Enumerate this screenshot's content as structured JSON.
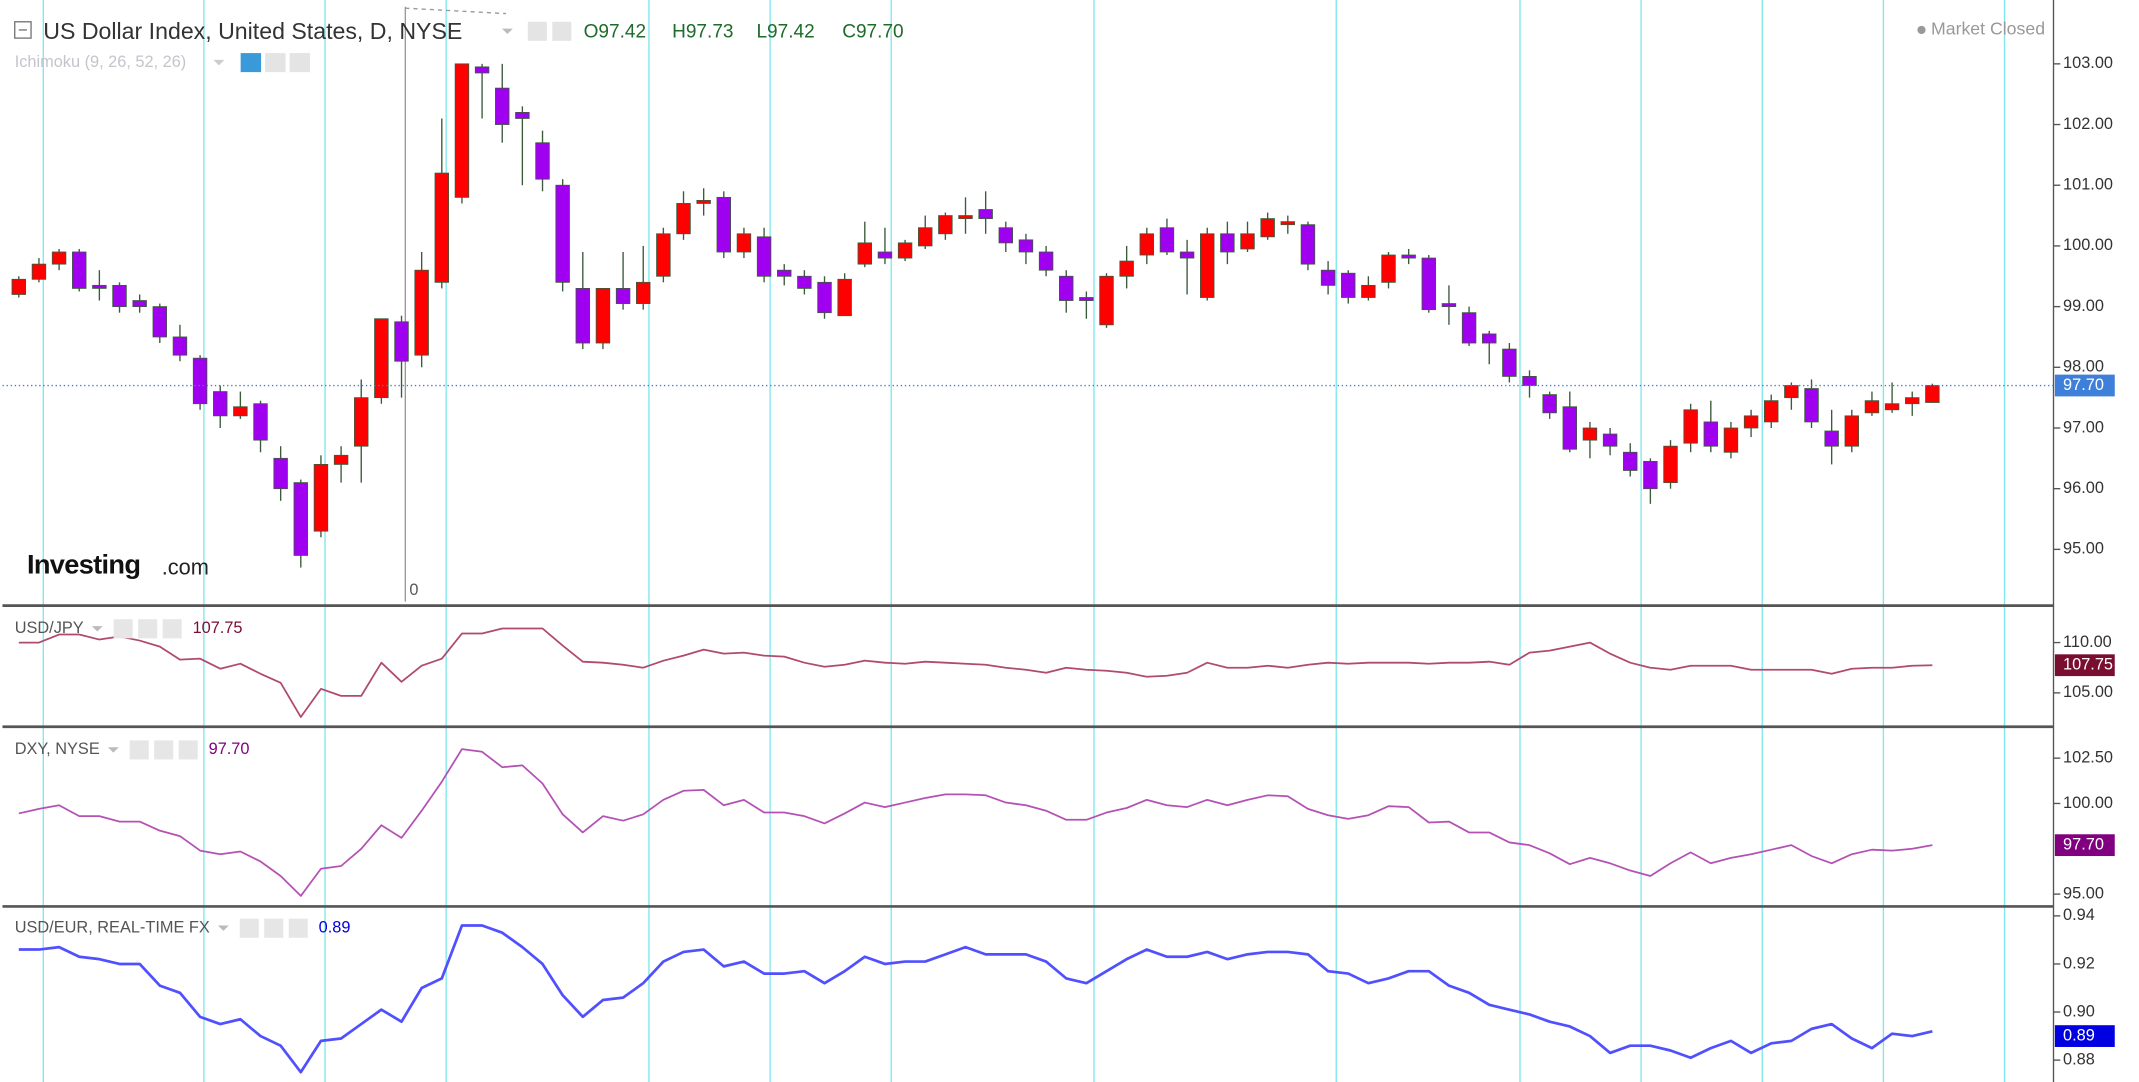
{
  "header": {
    "title": "US Dollar Index, United States, D, NYSE",
    "ohlc": [
      "O97.42",
      "H97.73",
      "L97.42",
      "C97.70"
    ],
    "status": "Market Closed",
    "indicator": "Ichimoku (9, 26, 52, 26)",
    "logo_main": "Investing",
    "logo_suffix": ".com",
    "crosshair_label": "0"
  },
  "chart_data": [
    {
      "type": "candlestick",
      "name": "US Dollar Index",
      "up_color": "#ff0000",
      "down_color": "#a000f0",
      "wick_color": "#3c5a3c",
      "open": [
        99.2,
        99.45,
        99.7,
        99.9,
        99.35,
        99.35,
        99.1,
        99.0,
        98.5,
        98.15,
        97.6,
        97.2,
        97.4,
        96.5,
        96.1,
        95.3,
        96.4,
        96.7,
        97.5,
        98.75,
        98.2,
        99.4,
        100.8,
        102.95,
        102.6,
        102.2,
        101.7,
        101.0,
        99.3,
        98.4,
        99.3,
        99.05,
        99.5,
        100.2,
        100.7,
        100.8,
        99.9,
        100.15,
        99.6,
        99.5,
        99.4,
        98.85,
        99.7,
        99.9,
        99.8,
        100.0,
        100.2,
        100.45,
        100.6,
        100.3,
        100.1,
        99.9,
        99.5,
        99.15,
        98.7,
        99.5,
        99.85,
        100.3,
        99.9,
        99.15,
        100.2,
        99.95,
        100.15,
        100.35,
        100.35,
        99.6,
        99.55,
        99.15,
        99.4,
        99.85,
        99.8,
        99.05,
        98.9,
        98.55,
        98.3,
        97.85,
        97.55,
        97.35,
        96.8,
        96.9,
        96.6,
        96.45,
        96.1,
        96.75,
        97.1,
        96.6,
        97.0,
        97.1,
        97.5,
        97.65,
        96.95,
        96.7,
        97.25,
        97.3,
        97.4,
        97.42
      ],
      "high": [
        99.5,
        99.8,
        99.95,
        99.95,
        99.6,
        99.4,
        99.2,
        99.05,
        98.7,
        98.2,
        97.7,
        97.6,
        97.45,
        96.7,
        96.15,
        96.55,
        96.7,
        97.8,
        98.8,
        98.85,
        99.9,
        102.1,
        103.0,
        103.0,
        103.0,
        102.3,
        101.9,
        101.1,
        99.9,
        99.3,
        99.9,
        100.0,
        100.3,
        100.9,
        100.95,
        100.9,
        100.3,
        100.3,
        99.7,
        99.6,
        99.5,
        99.55,
        100.4,
        100.3,
        100.1,
        100.5,
        100.55,
        100.8,
        100.9,
        100.4,
        100.2,
        100.0,
        99.6,
        99.25,
        99.55,
        100.0,
        100.3,
        100.45,
        100.1,
        100.3,
        100.4,
        100.4,
        100.55,
        100.5,
        100.4,
        99.75,
        99.6,
        99.5,
        99.9,
        99.95,
        99.85,
        99.35,
        99.0,
        98.6,
        98.4,
        97.95,
        97.6,
        97.6,
        97.1,
        97.0,
        96.75,
        96.5,
        96.8,
        97.4,
        97.45,
        97.1,
        97.3,
        97.55,
        97.75,
        97.8,
        97.3,
        97.3,
        97.6,
        97.75,
        97.6,
        97.73
      ],
      "low": [
        99.15,
        99.4,
        99.6,
        99.25,
        99.1,
        98.9,
        98.9,
        98.4,
        98.1,
        97.3,
        97.0,
        97.15,
        96.6,
        95.8,
        94.7,
        95.2,
        96.1,
        96.1,
        97.4,
        97.5,
        98.0,
        99.3,
        100.7,
        102.1,
        101.7,
        101.0,
        100.9,
        99.25,
        98.3,
        98.3,
        98.95,
        98.95,
        99.4,
        100.1,
        100.5,
        99.8,
        99.8,
        99.4,
        99.35,
        99.2,
        98.8,
        98.85,
        99.65,
        99.7,
        99.75,
        99.95,
        100.1,
        100.2,
        100.2,
        99.9,
        99.7,
        99.5,
        98.9,
        98.8,
        98.65,
        99.3,
        99.7,
        99.85,
        99.2,
        99.1,
        99.7,
        99.9,
        100.1,
        100.2,
        99.6,
        99.2,
        99.05,
        99.1,
        99.3,
        99.7,
        98.9,
        98.7,
        98.35,
        98.05,
        97.75,
        97.5,
        97.15,
        96.6,
        96.5,
        96.55,
        96.2,
        95.75,
        96.0,
        96.6,
        96.6,
        96.5,
        96.85,
        97.0,
        97.3,
        97.0,
        96.4,
        96.6,
        97.2,
        97.25,
        97.2,
        97.42
      ],
      "close": [
        99.45,
        99.7,
        99.9,
        99.3,
        99.3,
        99.0,
        99.0,
        98.5,
        98.2,
        97.4,
        97.2,
        97.35,
        96.8,
        96.0,
        94.9,
        96.4,
        96.55,
        97.5,
        98.8,
        98.1,
        99.6,
        101.2,
        103.0,
        102.85,
        102.0,
        102.1,
        101.1,
        99.4,
        98.4,
        99.3,
        99.05,
        99.4,
        100.2,
        100.7,
        100.75,
        99.9,
        100.2,
        99.5,
        99.5,
        99.3,
        98.9,
        99.45,
        100.05,
        99.8,
        100.05,
        100.3,
        100.5,
        100.5,
        100.45,
        100.05,
        99.9,
        99.6,
        99.1,
        99.1,
        99.5,
        99.75,
        100.2,
        99.9,
        99.8,
        100.2,
        99.9,
        100.2,
        100.45,
        100.4,
        99.7,
        99.35,
        99.15,
        99.35,
        99.85,
        99.8,
        98.95,
        99.0,
        98.4,
        98.4,
        97.85,
        97.7,
        97.25,
        96.65,
        97.0,
        96.7,
        96.3,
        96.0,
        96.7,
        97.3,
        96.7,
        97.0,
        97.2,
        97.45,
        97.7,
        97.1,
        96.7,
        97.2,
        97.45,
        97.4,
        97.5,
        97.7
      ],
      "last": {
        "value": 97.7,
        "label": "97.70"
      },
      "last_color": "#3d7fd9",
      "ylim": [
        94.14,
        103.94
      ],
      "yticks": [
        {
          "value": 95,
          "label": "95.00"
        },
        {
          "value": 96,
          "label": "96.00"
        },
        {
          "value": 97,
          "label": "97.00"
        },
        {
          "value": 98,
          "label": "98.00"
        },
        {
          "value": 99,
          "label": "99.00"
        },
        {
          "value": 100,
          "label": "100.00"
        },
        {
          "value": 101,
          "label": "101.00"
        },
        {
          "value": 102,
          "label": "102.00"
        },
        {
          "value": 103,
          "label": "103.00"
        }
      ]
    },
    {
      "type": "line",
      "name": "USD/JPY",
      "color": "#b04a6e",
      "last": 107.75,
      "last_color": "#7a0e30",
      "values": [
        110.0,
        110.0,
        110.8,
        110.8,
        110.3,
        110.6,
        110.2,
        109.6,
        108.3,
        108.4,
        107.4,
        107.9,
        106.9,
        106.0,
        102.6,
        105.4,
        104.7,
        104.7,
        108.0,
        106.1,
        107.7,
        108.4,
        110.9,
        110.9,
        111.4,
        111.4,
        111.4,
        109.7,
        108.1,
        108.0,
        107.8,
        107.5,
        108.2,
        108.7,
        109.3,
        108.9,
        109.0,
        108.7,
        108.6,
        108.0,
        107.6,
        107.8,
        108.2,
        108.0,
        107.9,
        108.1,
        108.0,
        107.9,
        107.8,
        107.5,
        107.3,
        107.0,
        107.5,
        107.3,
        107.2,
        107.0,
        106.6,
        106.7,
        107.0,
        108.0,
        107.5,
        107.5,
        107.7,
        107.5,
        107.8,
        108.0,
        107.9,
        108.0,
        108.0,
        108.0,
        107.9,
        108.0,
        108.0,
        108.1,
        107.8,
        109.0,
        109.2,
        109.6,
        110.0,
        108.9,
        108.0,
        107.5,
        107.3,
        107.7,
        107.7,
        107.7,
        107.3,
        107.3,
        107.3,
        107.3,
        106.9,
        107.4,
        107.5,
        107.5,
        107.7,
        107.75
      ],
      "ylim": [
        101.9,
        113.4
      ],
      "yticks": [
        {
          "value": 105,
          "label": "105.00"
        },
        {
          "value": 110,
          "label": "110.00"
        }
      ]
    },
    {
      "type": "line",
      "name": "DXY, NYSE",
      "color": "#b452b4",
      "last": {
        "value": 97.7,
        "label": "97.70"
      },
      "last_color": "#800080",
      "values": [
        99.45,
        99.7,
        99.9,
        99.3,
        99.3,
        99.0,
        99.0,
        98.5,
        98.2,
        97.4,
        97.2,
        97.35,
        96.8,
        96.0,
        94.9,
        96.4,
        96.55,
        97.5,
        98.8,
        98.1,
        99.6,
        101.2,
        103.0,
        102.85,
        102.0,
        102.1,
        101.1,
        99.4,
        98.4,
        99.3,
        99.05,
        99.4,
        100.2,
        100.7,
        100.75,
        99.9,
        100.2,
        99.5,
        99.5,
        99.3,
        98.9,
        99.45,
        100.05,
        99.8,
        100.05,
        100.3,
        100.5,
        100.5,
        100.45,
        100.05,
        99.9,
        99.6,
        99.1,
        99.1,
        99.5,
        99.75,
        100.2,
        99.9,
        99.8,
        100.2,
        99.9,
        100.2,
        100.45,
        100.4,
        99.7,
        99.35,
        99.15,
        99.35,
        99.85,
        99.8,
        98.95,
        99.0,
        98.4,
        98.4,
        97.85,
        97.7,
        97.25,
        96.65,
        97.0,
        96.7,
        96.3,
        96.0,
        96.7,
        97.3,
        96.7,
        97.0,
        97.2,
        97.45,
        97.7,
        97.1,
        96.7,
        97.2,
        97.45,
        97.4,
        97.5,
        97.7
      ],
      "ylim": [
        94.47,
        104.08
      ],
      "yticks": [
        {
          "value": 95,
          "label": "95.00"
        },
        {
          "value": 100,
          "label": "100.00"
        },
        {
          "value": 102.5,
          "label": "102.50"
        }
      ]
    },
    {
      "type": "line",
      "name": "USD/EUR, REAL-TIME FX",
      "color": "#5050ff",
      "last": 0.89,
      "last_color": "#0000e0",
      "values": [
        0.926,
        0.926,
        0.927,
        0.923,
        0.922,
        0.92,
        0.92,
        0.911,
        0.908,
        0.898,
        0.895,
        0.897,
        0.89,
        0.886,
        0.875,
        0.888,
        0.889,
        0.895,
        0.901,
        0.896,
        0.91,
        0.914,
        0.936,
        0.936,
        0.933,
        0.927,
        0.92,
        0.907,
        0.898,
        0.905,
        0.906,
        0.912,
        0.921,
        0.925,
        0.926,
        0.919,
        0.921,
        0.916,
        0.916,
        0.917,
        0.912,
        0.917,
        0.923,
        0.92,
        0.921,
        0.921,
        0.924,
        0.927,
        0.924,
        0.924,
        0.924,
        0.921,
        0.914,
        0.912,
        0.917,
        0.922,
        0.926,
        0.923,
        0.923,
        0.925,
        0.922,
        0.924,
        0.925,
        0.925,
        0.924,
        0.917,
        0.916,
        0.912,
        0.914,
        0.917,
        0.917,
        0.911,
        0.908,
        0.903,
        0.901,
        0.899,
        0.896,
        0.894,
        0.89,
        0.883,
        0.886,
        0.886,
        0.884,
        0.881,
        0.885,
        0.888,
        0.883,
        0.887,
        0.888,
        0.893,
        0.895,
        0.889,
        0.885,
        0.891,
        0.89,
        0.892
      ],
      "ylim": [
        0.8709,
        0.9428
      ],
      "yticks": [
        0.88,
        {
          "value": 0.9,
          "label": "0.90"
        },
        0.92,
        0.94
      ]
    }
  ]
}
